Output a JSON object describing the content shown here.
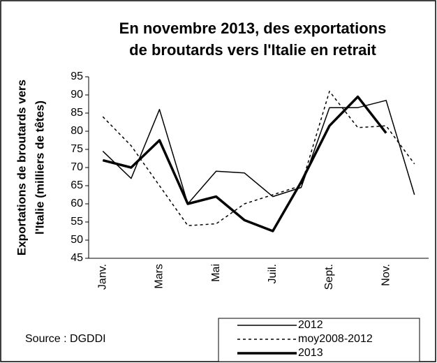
{
  "chart_data": {
    "type": "line",
    "title": [
      "En novembre 2013, des exportations",
      "de broutards vers l'Italie en retrait"
    ],
    "y_label": [
      "Exportations de broutards vers",
      "l'Italie (milliers de têtes)"
    ],
    "source": "Source : DGDDI",
    "categories": [
      "Janv.",
      null,
      "Mars",
      null,
      "Mai",
      null,
      "Juil.",
      null,
      "Sept.",
      null,
      "Nov.",
      null
    ],
    "series": [
      {
        "name": "2012",
        "color": "#000000",
        "dash": "solid",
        "linewidth": 1.5,
        "values": [
          74.5,
          67,
          86,
          60,
          69,
          68.5,
          62,
          64.5,
          86.5,
          86.5,
          88.5,
          62.5
        ]
      },
      {
        "name": "moy2008-2012",
        "color": "#000000",
        "dash": "dashed",
        "linewidth": 1.5,
        "values": [
          84,
          76,
          65,
          54,
          54.5,
          60,
          62.5,
          65,
          91,
          81,
          81.5,
          71
        ]
      },
      {
        "name": "2013",
        "color": "#000000",
        "dash": "solid",
        "linewidth": 3.5,
        "values": [
          72,
          70,
          77.5,
          60,
          62,
          55.5,
          52.5,
          66,
          81.5,
          89.5,
          79.5,
          null
        ]
      }
    ],
    "ylim": [
      45,
      95
    ],
    "yticks": [
      45,
      50,
      55,
      60,
      65,
      70,
      75,
      80,
      85,
      90,
      95
    ],
    "grid": false,
    "legend": "lower right"
  }
}
